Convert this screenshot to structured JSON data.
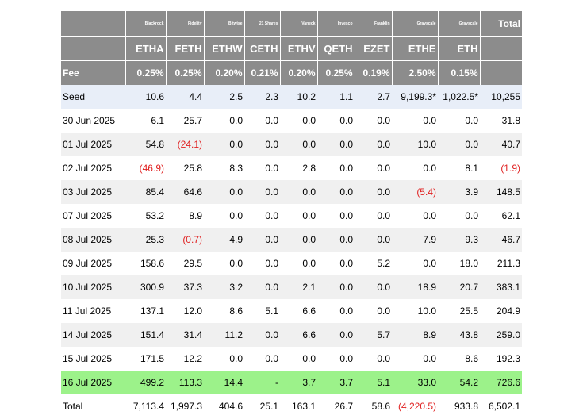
{
  "columns": [
    {
      "provider": "Blackrock",
      "ticker": "ETHA",
      "fee": "0.25%"
    },
    {
      "provider": "Fidelity",
      "ticker": "FETH",
      "fee": "0.25%"
    },
    {
      "provider": "Bitwise",
      "ticker": "ETHW",
      "fee": "0.20%"
    },
    {
      "provider": "21 Shares",
      "ticker": "CETH",
      "fee": "0.21%"
    },
    {
      "provider": "Vaneck",
      "ticker": "ETHV",
      "fee": "0.20%"
    },
    {
      "provider": "Invesco",
      "ticker": "QETH",
      "fee": "0.25%"
    },
    {
      "provider": "Franklin",
      "ticker": "EZET",
      "fee": "0.19%"
    },
    {
      "provider": "Grayscale",
      "ticker": "ETHE",
      "fee": "2.50%"
    },
    {
      "provider": "Grayscale",
      "ticker": "ETH",
      "fee": "0.15%"
    }
  ],
  "total_header": "Total",
  "fee_label": "Fee",
  "rows": [
    {
      "label": "Seed",
      "values": [
        "10.6",
        "4.4",
        "2.5",
        "2.3",
        "10.2",
        "1.1",
        "2.7",
        "9,199.3*",
        "1,022.5*"
      ],
      "total": "10,255",
      "style": "seed"
    },
    {
      "label": "30 Jun 2025",
      "values": [
        "6.1",
        "25.7",
        "0.0",
        "0.0",
        "0.0",
        "0.0",
        "0.0",
        "0.0",
        "0.0"
      ],
      "total": "31.8",
      "style": "odd"
    },
    {
      "label": "01 Jul 2025",
      "values": [
        "54.8",
        "(24.1)",
        "0.0",
        "0.0",
        "0.0",
        "0.0",
        "0.0",
        "10.0",
        "0.0"
      ],
      "total": "40.7",
      "style": "even"
    },
    {
      "label": "02 Jul 2025",
      "values": [
        "(46.9)",
        "25.8",
        "8.3",
        "0.0",
        "2.8",
        "0.0",
        "0.0",
        "0.0",
        "8.1"
      ],
      "total": "(1.9)",
      "style": "odd"
    },
    {
      "label": "03 Jul 2025",
      "values": [
        "85.4",
        "64.6",
        "0.0",
        "0.0",
        "0.0",
        "0.0",
        "0.0",
        "(5.4)",
        "3.9"
      ],
      "total": "148.5",
      "style": "even"
    },
    {
      "label": "07 Jul 2025",
      "values": [
        "53.2",
        "8.9",
        "0.0",
        "0.0",
        "0.0",
        "0.0",
        "0.0",
        "0.0",
        "0.0"
      ],
      "total": "62.1",
      "style": "odd"
    },
    {
      "label": "08 Jul 2025",
      "values": [
        "25.3",
        "(0.7)",
        "4.9",
        "0.0",
        "0.0",
        "0.0",
        "0.0",
        "7.9",
        "9.3"
      ],
      "total": "46.7",
      "style": "even"
    },
    {
      "label": "09 Jul 2025",
      "values": [
        "158.6",
        "29.5",
        "0.0",
        "0.0",
        "0.0",
        "0.0",
        "5.2",
        "0.0",
        "18.0"
      ],
      "total": "211.3",
      "style": "odd"
    },
    {
      "label": "10 Jul 2025",
      "values": [
        "300.9",
        "37.3",
        "3.2",
        "0.0",
        "2.1",
        "0.0",
        "0.0",
        "18.9",
        "20.7"
      ],
      "total": "383.1",
      "style": "even"
    },
    {
      "label": "11 Jul 2025",
      "values": [
        "137.1",
        "12.0",
        "8.6",
        "5.1",
        "6.6",
        "0.0",
        "0.0",
        "10.0",
        "25.5"
      ],
      "total": "204.9",
      "style": "odd"
    },
    {
      "label": "14 Jul 2025",
      "values": [
        "151.4",
        "31.4",
        "11.2",
        "0.0",
        "6.6",
        "0.0",
        "5.7",
        "8.9",
        "43.8"
      ],
      "total": "259.0",
      "style": "even"
    },
    {
      "label": "15 Jul 2025",
      "values": [
        "171.5",
        "12.2",
        "0.0",
        "0.0",
        "0.0",
        "0.0",
        "0.0",
        "0.0",
        "8.6"
      ],
      "total": "192.3",
      "style": "odd"
    },
    {
      "label": "16 Jul 2025",
      "values": [
        "499.2",
        "113.3",
        "14.4",
        "-",
        "3.7",
        "3.7",
        "5.1",
        "33.0",
        "54.2"
      ],
      "total": "726.6",
      "style": "hl"
    },
    {
      "label": "Total",
      "values": [
        "7,113.4",
        "1,997.3",
        "404.6",
        "25.1",
        "163.1",
        "26.7",
        "58.6",
        "(4,220.5)",
        "933.8"
      ],
      "total": "6,502.1",
      "style": "total"
    }
  ]
}
